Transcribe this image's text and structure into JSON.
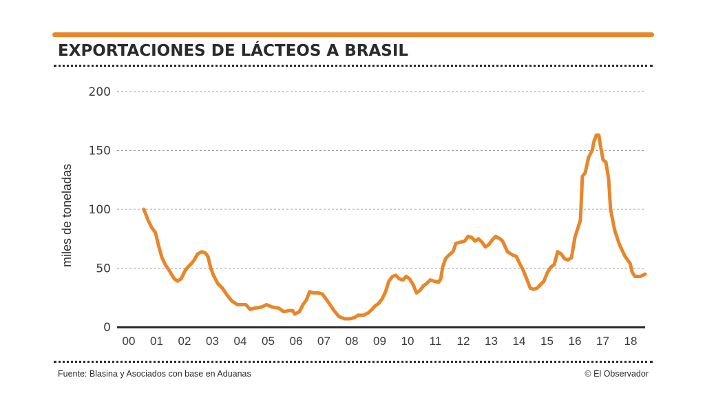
{
  "header": {
    "title": "EXPORTACIONES DE LÁCTEOS A BRASIL"
  },
  "footer": {
    "source": "Fuente: Blasina y Asociados con base en Aduanas",
    "credit": "© El Observador"
  },
  "colors": {
    "accent": "#E8862A",
    "line": "#E8862A",
    "text": "#2b2b2b",
    "grid": "#9a9a9a",
    "axis": "#2b2b2b"
  },
  "chart_data": {
    "type": "line",
    "title": "EXPORTACIONES DE LÁCTEOS A BRASIL",
    "xlabel": "",
    "ylabel": "miles de toneladas",
    "xlim": [
      -0.4,
      18.55
    ],
    "ylim": [
      0,
      200
    ],
    "yticks": [
      0,
      50,
      100,
      150,
      200
    ],
    "ytick_labels": [
      "0",
      "50",
      "100",
      "150",
      "200"
    ],
    "xticks": [
      0,
      1,
      2,
      3,
      4,
      5,
      6,
      7,
      8,
      9,
      10,
      11,
      12,
      13,
      14,
      15,
      16,
      17,
      18
    ],
    "xtick_labels": [
      "00",
      "01",
      "02",
      "03",
      "04",
      "05",
      "06",
      "07",
      "08",
      "09",
      "10",
      "11",
      "12",
      "13",
      "14",
      "15",
      "16",
      "17",
      "18"
    ],
    "grid": "horizontal dashed",
    "legend": "none",
    "series": [
      {
        "name": "Exportaciones de lácteos a Brasil",
        "x": [
          0.54,
          0.69,
          0.81,
          0.96,
          1.06,
          1.19,
          1.31,
          1.48,
          1.63,
          1.75,
          1.88,
          2.0,
          2.12,
          2.25,
          2.35,
          2.47,
          2.62,
          2.74,
          2.84,
          2.94,
          3.04,
          3.19,
          3.36,
          3.53,
          3.7,
          3.9,
          4.07,
          4.2,
          4.35,
          4.52,
          4.77,
          4.94,
          5.14,
          5.38,
          5.56,
          5.75,
          5.88,
          5.95,
          6.12,
          6.25,
          6.37,
          6.49,
          6.62,
          6.79,
          6.94,
          7.04,
          7.19,
          7.36,
          7.53,
          7.73,
          7.93,
          8.1,
          8.22,
          8.42,
          8.59,
          8.72,
          8.84,
          8.96,
          9.09,
          9.21,
          9.33,
          9.46,
          9.58,
          9.7,
          9.83,
          9.95,
          10.07,
          10.2,
          10.32,
          10.44,
          10.57,
          10.69,
          10.81,
          10.94,
          11.11,
          11.19,
          11.26,
          11.36,
          11.48,
          11.63,
          11.73,
          11.88,
          12.05,
          12.17,
          12.3,
          12.42,
          12.54,
          12.67,
          12.79,
          12.91,
          13.04,
          13.16,
          13.31,
          13.41,
          13.58,
          13.78,
          13.9,
          14.02,
          14.15,
          14.27,
          14.4,
          14.52,
          14.64,
          14.77,
          14.89,
          15.01,
          15.14,
          15.26,
          15.38,
          15.51,
          15.63,
          15.75,
          15.88,
          16.0,
          16.12,
          16.2,
          16.27,
          16.37,
          16.49,
          16.62,
          16.69,
          16.77,
          16.86,
          16.91,
          17.01,
          17.11,
          17.21,
          17.28,
          17.43,
          17.6,
          17.8,
          17.98,
          18.05,
          18.15,
          18.35,
          18.52
        ],
        "values": [
          100,
          91,
          85,
          80,
          70,
          59,
          53,
          47,
          41,
          39,
          41,
          47,
          51,
          54,
          57,
          62,
          64,
          63,
          60,
          50,
          44,
          37,
          33,
          27,
          22,
          19,
          19,
          19,
          15,
          16,
          17,
          19,
          17,
          16,
          13,
          14,
          14,
          11,
          13,
          19,
          23,
          30,
          29,
          29,
          28,
          25,
          20,
          14,
          9,
          7,
          7,
          8,
          10,
          10,
          12,
          15,
          18,
          20,
          24,
          30,
          39,
          43,
          44,
          41,
          40,
          43,
          41,
          36,
          29,
          31,
          35,
          37,
          40,
          39,
          38,
          41,
          51,
          58,
          61,
          64,
          71,
          72,
          73,
          77,
          76,
          73,
          75,
          72,
          68,
          70,
          74,
          77,
          75,
          73,
          64,
          61,
          60,
          54,
          48,
          41,
          33,
          32,
          33,
          36,
          39,
          46,
          51,
          53,
          64,
          62,
          58,
          57,
          59,
          76,
          85,
          91,
          128,
          131,
          144,
          150,
          158,
          163,
          163,
          155,
          142,
          140,
          126,
          100,
          82,
          70,
          60,
          54,
          47,
          43,
          43,
          45
        ]
      }
    ]
  }
}
